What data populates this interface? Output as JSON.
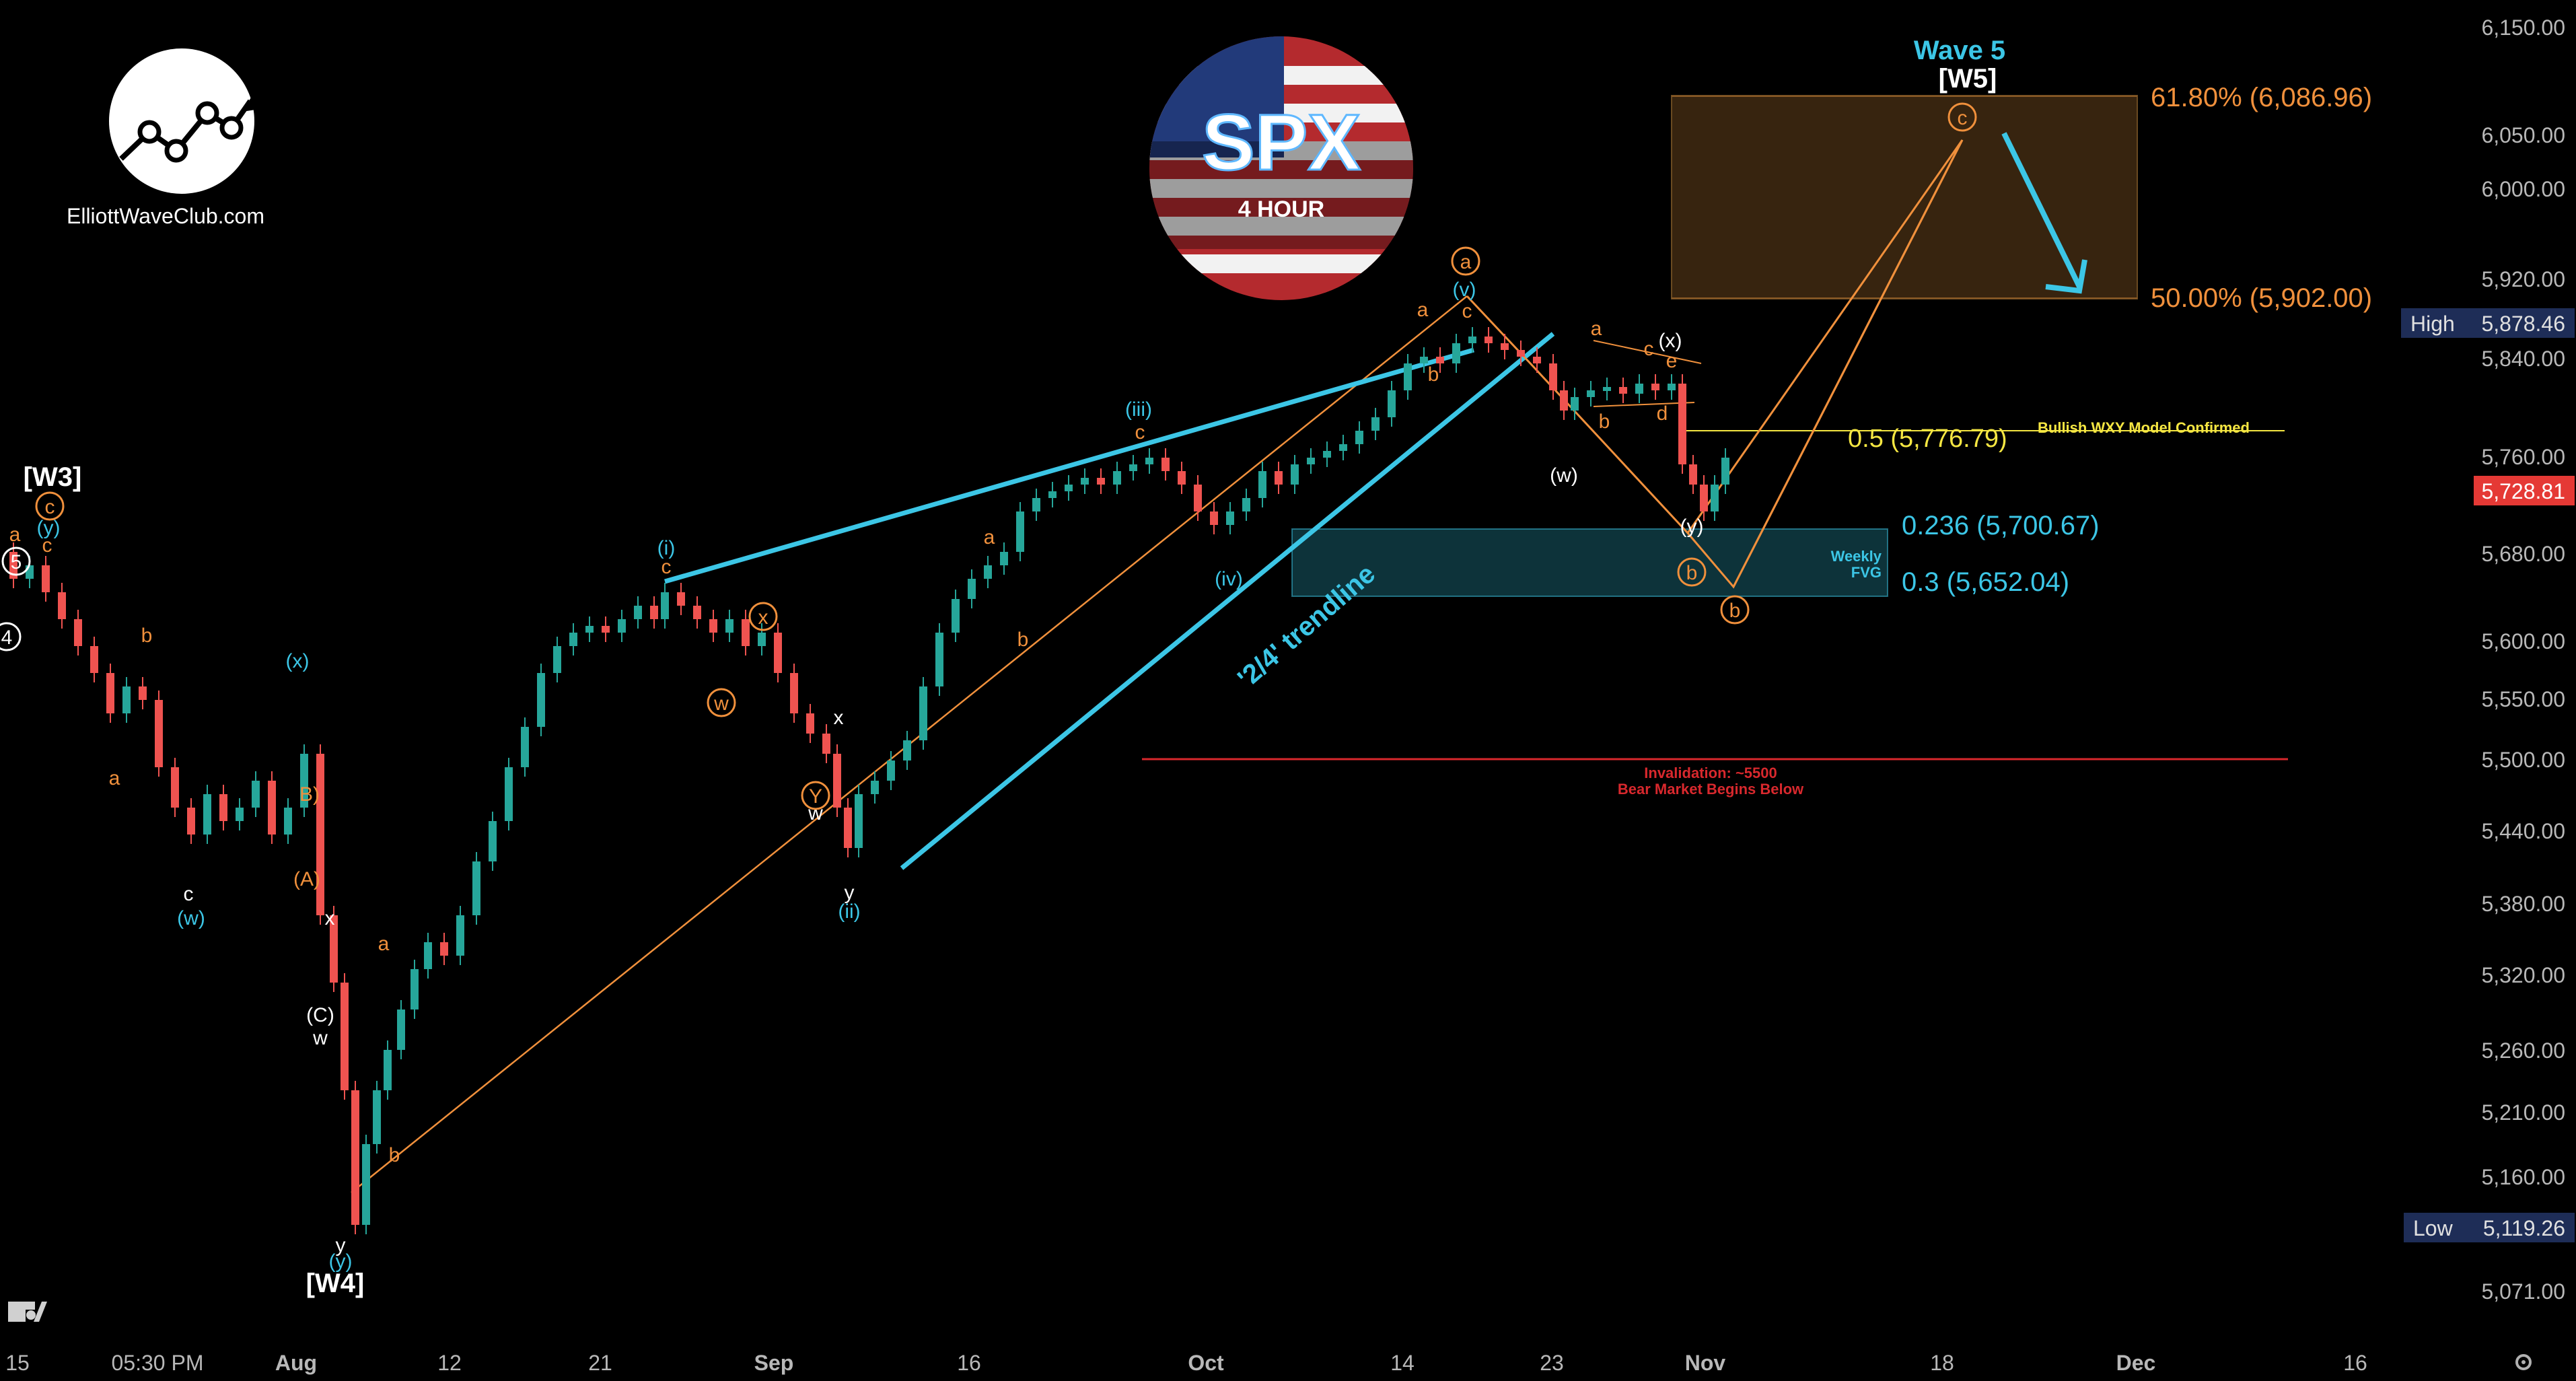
{
  "branding": {
    "site": "ElliottWaveClub.com",
    "symbol": "SPX",
    "timeframe": "4 HOUR"
  },
  "colors": {
    "up": "#26a69a",
    "down": "#ef5350",
    "cyan": "#3cc6e6",
    "orange": "#f0903c",
    "yellow": "#f5e642",
    "red": "#d8282d",
    "text": "#d0d0d0",
    "background": "#000000"
  },
  "price_axis": {
    "ticks": [
      "6,150.00",
      "6,050.00",
      "6,000.00",
      "5,920.00",
      "5,840.00",
      "5,760.00",
      "5,680.00",
      "5,600.00",
      "5,550.00",
      "5,500.00",
      "5,440.00",
      "5,380.00",
      "5,320.00",
      "5,260.00",
      "5,210.00",
      "5,160.00",
      "5,071.00"
    ],
    "high_label": "High",
    "high_value": "5,878.46",
    "current_value": "5,728.81",
    "low_label": "Low",
    "low_value": "5,119.26"
  },
  "time_axis": {
    "ticks": [
      "15",
      "05:30 PM",
      "Aug",
      "12",
      "21",
      "Sep",
      "16",
      "Oct",
      "14",
      "23",
      "Nov",
      "18",
      "Dec",
      "16"
    ]
  },
  "annotations": {
    "wave5_title": "Wave 5",
    "w5": "[W5]",
    "w3": "[W3]",
    "w4": "[W4]",
    "fib_618": "61.80% (6,086.96)",
    "fib_500": "50.00% (5,902.00)",
    "fib_05": "0.5 (5,776.79)",
    "fib_0236": "0.236 (5,700.67)",
    "fib_03": "0.3 (5,652.04)",
    "bullish_wxy": "Bullish WXY Model Confirmed",
    "weekly_fvg_1": "Weekly",
    "weekly_fvg_2": "FVG",
    "invalidation_1": "Invalidation: ~5500",
    "invalidation_2": "Bear Market Begins Below",
    "trendline": "'2/4' trendline"
  },
  "chart_data": {
    "type": "candlestick",
    "title": "SPX",
    "subtitle": "4 HOUR",
    "ylim": [
      5040,
      6170
    ],
    "price_levels": {
      "high": 5878.46,
      "low": 5119.26,
      "current": 5728.81,
      "fib_61_8": 6086.96,
      "fib_50": 5902.0,
      "fib_0_5": 5776.79,
      "fib_0_236": 5700.67,
      "fib_0_3": 5652.04,
      "invalidation": 5500
    },
    "wave_labels": [
      "[W3]",
      "[W4]",
      "[W5]",
      "Wave 5",
      "(i)",
      "(ii)",
      "(iii)",
      "(iv)",
      "(v)",
      "(w)",
      "(x)",
      "(y)",
      "a",
      "b",
      "c",
      "d",
      "e",
      "w",
      "x",
      "y",
      "(A)",
      "(B)",
      "(C)"
    ],
    "grid": false
  }
}
